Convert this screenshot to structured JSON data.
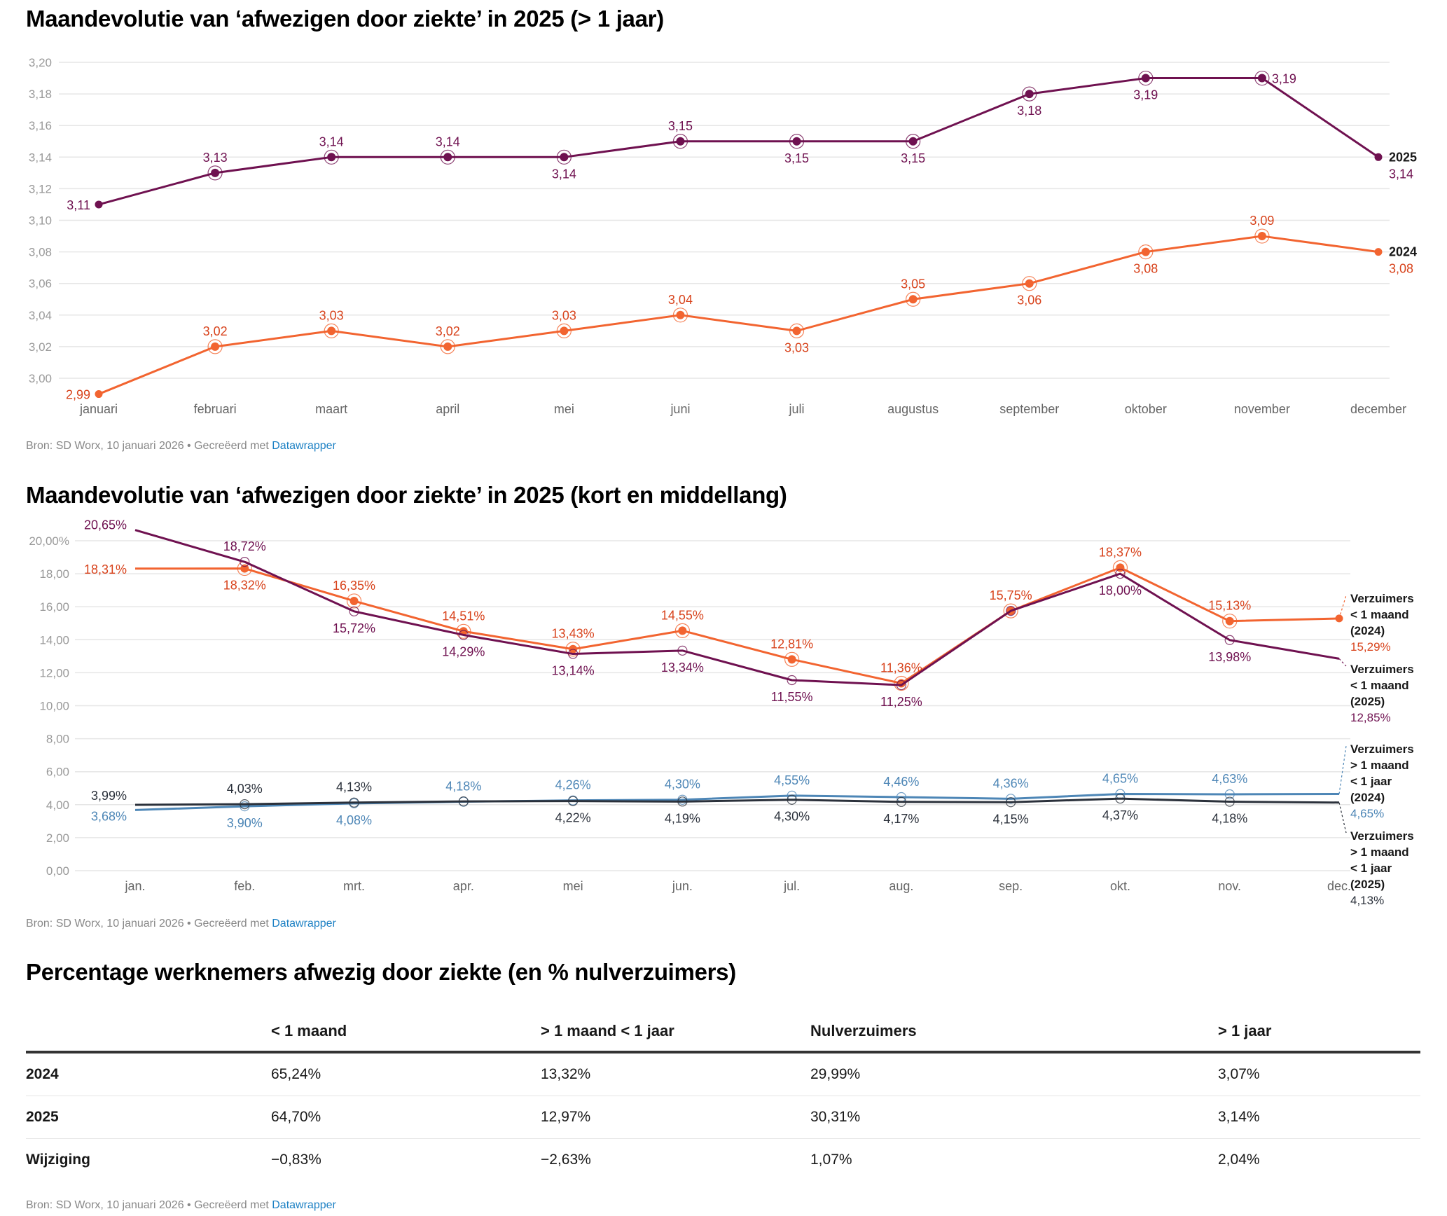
{
  "chart_data": [
    {
      "type": "line",
      "title": "Maandevolutie van ‘afwezigen door ziekte’ in 2025 (> 1 jaar)",
      "xlabel": "",
      "ylabel": "",
      "ylim": [
        3.0,
        3.2
      ],
      "yticks": [
        "3,00",
        "3,02",
        "3,04",
        "3,06",
        "3,08",
        "3,10",
        "3,12",
        "3,14",
        "3,16",
        "3,18",
        "3,20"
      ],
      "grid": true,
      "legend": "direct-labels-right",
      "categories": [
        "januari",
        "februari",
        "maart",
        "april",
        "mei",
        "juni",
        "juli",
        "augustus",
        "september",
        "oktober",
        "november",
        "december"
      ],
      "series": [
        {
          "name": "2025",
          "color": "#6f1150",
          "values": [
            3.11,
            3.13,
            3.14,
            3.14,
            3.14,
            3.15,
            3.15,
            3.15,
            3.18,
            3.19,
            3.19,
            3.14
          ],
          "labels": [
            "3,11",
            "3,13",
            "3,14",
            "3,14",
            "3,14",
            "3,15",
            "3,15",
            "3,15",
            "3,18",
            "3,19",
            "3,19",
            "3,14"
          ],
          "label_pos": [
            "left",
            "above",
            "above",
            "above",
            "below",
            "above",
            "below",
            "below",
            "below",
            "below",
            "right",
            "end"
          ]
        },
        {
          "name": "2024",
          "color": "#f26430",
          "label_color": "#d8431c",
          "values": [
            2.99,
            3.02,
            3.03,
            3.02,
            3.03,
            3.04,
            3.03,
            3.05,
            3.06,
            3.08,
            3.09,
            3.08
          ],
          "labels": [
            "2,99",
            "3,02",
            "3,03",
            "3,02",
            "3,03",
            "3,04",
            "3,03",
            "3,05",
            "3,06",
            "3,08",
            "3,09",
            "3,08"
          ],
          "label_pos": [
            "left",
            "above",
            "above",
            "above",
            "above",
            "above",
            "below",
            "above",
            "below",
            "below",
            "above",
            "end"
          ]
        }
      ],
      "footer": {
        "source": "Bron: SD Worx, 10 januari 2026 • Gecreëerd met ",
        "link": "Datawrapper"
      }
    },
    {
      "type": "line",
      "title": "Maandevolutie van ‘afwezigen door ziekte’ in 2025 (kort en middellang)",
      "xlabel": "",
      "ylabel": "",
      "ylim": [
        0,
        20.65
      ],
      "yticks": [
        "0,00",
        "2,00",
        "4,00",
        "6,00",
        "8,00",
        "10,00",
        "12,00",
        "14,00",
        "16,00",
        "18,00",
        "20,00%"
      ],
      "grid": true,
      "legend": "direct-labels-right",
      "categories": [
        "jan.",
        "feb.",
        "mrt.",
        "apr.",
        "mei",
        "jun.",
        "jul.",
        "aug.",
        "sep.",
        "okt.",
        "nov.",
        "dec."
      ],
      "series": [
        {
          "name": "Verzuimers < 1 maand (2024)",
          "legend_lines": [
            "Verzuimers",
            "< 1 maand",
            "(2024)"
          ],
          "color": "#f26430",
          "label_color": "#d8431c",
          "values": [
            18.31,
            18.32,
            16.35,
            14.51,
            13.43,
            14.55,
            12.81,
            11.36,
            15.75,
            18.37,
            15.13,
            15.29
          ],
          "labels": [
            "18,31%",
            "18,32%",
            "16,35%",
            "14,51%",
            "13,43%",
            "14,55%",
            "12,81%",
            "11,36%",
            "15,75%",
            "18,37%",
            "15,13%",
            "15,29%"
          ],
          "label_pos": [
            "left",
            "below",
            "above",
            "above",
            "above",
            "above",
            "above",
            "above",
            "above",
            "above",
            "above",
            "end"
          ]
        },
        {
          "name": "Verzuimers < 1 maand (2025)",
          "legend_lines": [
            "Verzuimers",
            "< 1 maand",
            "(2025)"
          ],
          "color": "#6f1150",
          "values": [
            20.65,
            18.72,
            15.72,
            14.29,
            13.14,
            13.34,
            11.55,
            11.25,
            15.75,
            18.0,
            13.98,
            12.85
          ],
          "labels": [
            "20,65%",
            "18,72%",
            "15,72%",
            "14,29%",
            "13,14%",
            "13,34%",
            "11,55%",
            "11,25%",
            "",
            "18,00%",
            "13,98%",
            "12,85%"
          ],
          "label_pos": [
            "left",
            "above",
            "below",
            "below",
            "below",
            "below",
            "below",
            "below",
            "none",
            "below",
            "below",
            "end"
          ]
        },
        {
          "name": "Verzuimers > 1 maand < 1 jaar (2024)",
          "legend_lines": [
            "Verzuimers",
            "> 1 maand",
            "< 1 jaar",
            "(2024)"
          ],
          "color": "#4d86b6",
          "values": [
            3.68,
            3.9,
            4.08,
            4.18,
            4.26,
            4.3,
            4.55,
            4.46,
            4.36,
            4.65,
            4.63,
            4.65
          ],
          "labels": [
            "3,68%",
            "3,90%",
            "4,08%",
            "4,18%",
            "4,26%",
            "4,30%",
            "4,55%",
            "4,46%",
            "4,36%",
            "4,65%",
            "4,63%",
            "4,65%"
          ],
          "label_pos": [
            "left",
            "below",
            "below",
            "above",
            "above",
            "above",
            "above",
            "above",
            "above",
            "above",
            "above",
            "end"
          ]
        },
        {
          "name": "Verzuimers > 1 maand < 1 jaar (2025)",
          "legend_lines": [
            "Verzuimers",
            "> 1 maand",
            "< 1 jaar",
            "(2025)"
          ],
          "color": "#2b313b",
          "values": [
            3.99,
            4.03,
            4.13,
            4.2,
            4.22,
            4.19,
            4.3,
            4.17,
            4.15,
            4.37,
            4.18,
            4.13
          ],
          "labels": [
            "3,99%",
            "4,03%",
            "4,13%",
            "",
            "4,22%",
            "4,19%",
            "4,30%",
            "4,17%",
            "4,15%",
            "4,37%",
            "4,18%",
            "4,13%"
          ],
          "label_pos": [
            "left",
            "above",
            "above",
            "none",
            "below",
            "below",
            "below",
            "below",
            "below",
            "below",
            "below",
            "end"
          ]
        }
      ],
      "footer": {
        "source": "Bron: SD Worx, 10 januari 2026 • Gecreëerd met ",
        "link": "Datawrapper"
      }
    },
    {
      "type": "table",
      "title": "Percentage werknemers afwezig door ziekte (en % nulverzuimers)",
      "columns": [
        "",
        "< 1 maand",
        "> 1 maand < 1 jaar",
        "Nulverzuimers",
        "> 1 jaar"
      ],
      "rows": [
        {
          "label": "2024",
          "cells": [
            "65,24%",
            "13,32%",
            "29,99%",
            "3,07%"
          ]
        },
        {
          "label": "2025",
          "cells": [
            "64,70%",
            "12,97%",
            "30,31%",
            "3,14%"
          ]
        },
        {
          "label": "Wijziging",
          "cells": [
            "−0,83%",
            "−2,63%",
            "1,07%",
            "2,04%"
          ]
        }
      ],
      "footer": {
        "source": "Bron: SD Worx, 10 januari 2026 • Gecreëerd met ",
        "link": "Datawrapper"
      }
    }
  ]
}
